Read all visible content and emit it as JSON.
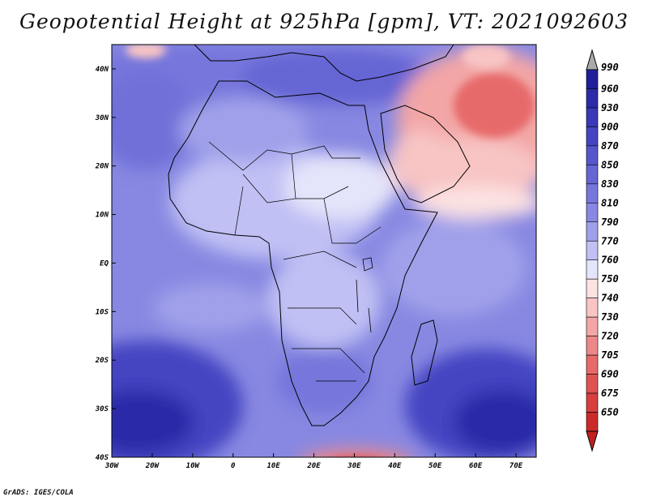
{
  "title": "Geopotential Height at 925hPa [gpm], VT: 2021092603",
  "footer": "GrADS: IGES/COLA",
  "map": {
    "lat_labels": [
      "40N",
      "30N",
      "20N",
      "10N",
      "EQ",
      "10S",
      "20S",
      "30S",
      "40S"
    ],
    "lon_labels": [
      "30W",
      "20W",
      "10W",
      "0",
      "10E",
      "20E",
      "30E",
      "40E",
      "50E",
      "60E",
      "70E"
    ],
    "lat_values": [
      40,
      30,
      20,
      10,
      0,
      -10,
      -20,
      -30,
      -40
    ],
    "lon_values": [
      -30,
      -20,
      -10,
      0,
      10,
      20,
      30,
      40,
      50,
      60,
      70
    ],
    "lon_range": [
      -30,
      75
    ],
    "lat_range": [
      -40,
      45
    ]
  },
  "colorbar": {
    "labels": [
      "990",
      "960",
      "930",
      "900",
      "870",
      "850",
      "830",
      "810",
      "790",
      "770",
      "760",
      "750",
      "740",
      "730",
      "720",
      "705",
      "690",
      "675",
      "650"
    ],
    "colors": [
      "#1f1f9a",
      "#2b2ba8",
      "#3838b8",
      "#4545c2",
      "#5555cc",
      "#6565d4",
      "#7676dc",
      "#8888e2",
      "#a0a0ea",
      "#c0c0f4",
      "#e4e4fa",
      "#fde2e2",
      "#f8c4c4",
      "#f3a6a6",
      "#ee8888",
      "#e76a6a",
      "#e05252",
      "#d83e3e",
      "#cc2a2a"
    ],
    "cap_top_color": "#aaaaaa",
    "cap_bottom_color": "#c02020"
  }
}
